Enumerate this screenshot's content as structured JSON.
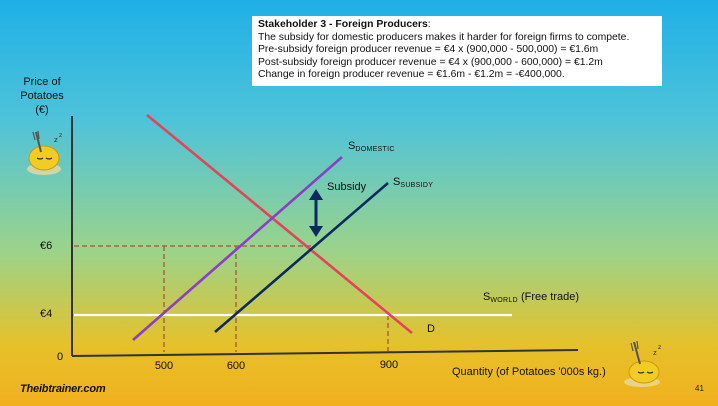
{
  "textbox": {
    "title": "Stakeholder 3 - Foreign Producers",
    "title_suffix": ":",
    "lines": [
      "The subsidy for domestic producers makes it harder for foreign firms to compete.",
      "Pre-subsidy foreign producer revenue = €4 x (900,000 - 500,000) = €1.6m",
      "Post-subsidy foreign producer revenue = €4 x (900,000 - 600,000) = €1.2m",
      "Change in foreign producer revenue = €1.6m - €1.2m = -€400,000."
    ]
  },
  "diagram": {
    "y_axis_title": [
      "Price of",
      "Potatoes",
      "(€)"
    ],
    "x_axis_title": "Quantity (of Potatoes '000s kg.)",
    "origin_label": "0",
    "price_labels": {
      "p6": "€6",
      "p4": "€4"
    },
    "quantity_labels": {
      "q500": "500",
      "q600": "600",
      "q900": "900"
    },
    "curves": {
      "s_domestic": {
        "main": "S",
        "sub": "DOMESTIC",
        "color": "#8b3fc4"
      },
      "s_subsidy": {
        "main": "S",
        "sub": "SUBSIDY",
        "color": "#0d2a5e"
      },
      "s_world": {
        "main": "S",
        "sub": "WORLD",
        "suffix": " (Free trade)",
        "color": "#ffffff"
      },
      "demand": {
        "label": "D",
        "color": "#e0455a"
      }
    },
    "subsidy_label": "Subsidy",
    "dashed_color": "#a05a3a"
  },
  "footer": {
    "logo": "Theibtrainer.com",
    "page_number": "41"
  }
}
